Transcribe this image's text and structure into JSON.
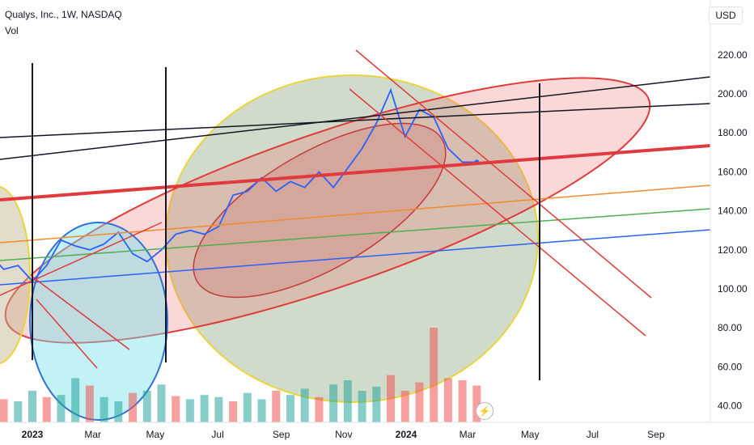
{
  "header": {
    "symbol": "Qualys, Inc., 1W, NASDAQ",
    "volume_label": "Vol",
    "currency": "USD"
  },
  "icons": {
    "flash": "lightning-icon"
  },
  "colors": {
    "price_line": "#2962ff",
    "volume_up": "#26a69a",
    "volume_down": "#ef5350",
    "trend_red": "#e03a3a",
    "ellipse_yellow": "#e8d53c",
    "ellipse_blue": "#2f6fd6",
    "orange_line": "#f28a2f",
    "green_line": "#4caf50",
    "blue_line": "#2962ff"
  },
  "chart_data": {
    "type": "line",
    "title": "Qualys, Inc., 1W, NASDAQ",
    "ylim": [
      35,
      230
    ],
    "yticks": [
      "220.00",
      "200.00",
      "180.00",
      "160.00",
      "140.00",
      "120.00",
      "100.00",
      "80.00",
      "60.00",
      "40.00"
    ],
    "xtick_labels": [
      "2023",
      "Mar",
      "May",
      "Jul",
      "Sep",
      "Nov",
      "2024",
      "Mar",
      "May",
      "Jul",
      "Sep"
    ],
    "xtick_dates": [
      "2023-01-01",
      "2023-03-01",
      "2023-05-01",
      "2023-07-01",
      "2023-09-01",
      "2023-11-01",
      "2024-01-01",
      "2024-03-01",
      "2024-05-01",
      "2024-07-01",
      "2024-09-01"
    ],
    "series": [
      {
        "x": [
          "2022-11-06",
          "2022-11-20",
          "2022-12-04",
          "2022-12-18",
          "2023-01-01",
          "2023-01-15",
          "2023-01-29",
          "2023-02-12",
          "2023-02-26",
          "2023-03-12",
          "2023-03-26",
          "2023-04-09",
          "2023-04-23",
          "2023-05-07",
          "2023-05-21",
          "2023-06-04",
          "2023-06-18",
          "2023-07-02",
          "2023-07-16",
          "2023-07-30",
          "2023-08-13",
          "2023-08-27",
          "2023-09-10",
          "2023-09-24",
          "2023-10-08",
          "2023-10-22",
          "2023-11-05",
          "2023-11-19",
          "2023-12-03",
          "2023-12-17",
          "2023-12-31",
          "2024-01-14",
          "2024-01-28",
          "2024-02-11",
          "2024-02-25",
          "2024-03-10"
        ],
        "values": [
          126,
          118,
          110,
          112,
          104,
          112,
          125,
          122,
          120,
          123,
          129,
          118,
          114,
          120,
          128,
          130,
          128,
          132,
          148,
          150,
          157,
          150,
          155,
          152,
          160,
          152,
          162,
          172,
          185,
          202,
          178,
          192,
          188,
          172,
          165,
          165
        ]
      }
    ],
    "volume": {
      "ylim": [
        0,
        1
      ],
      "values": [
        0.28,
        0.32,
        0.22,
        0.2,
        0.3,
        0.24,
        0.26,
        0.42,
        0.35,
        0.24,
        0.2,
        0.28,
        0.3,
        0.36,
        0.25,
        0.22,
        0.26,
        0.24,
        0.2,
        0.28,
        0.22,
        0.3,
        0.26,
        0.32,
        0.24,
        0.36,
        0.4,
        0.3,
        0.34,
        0.45,
        0.3,
        0.38,
        0.9,
        0.42,
        0.4,
        0.35
      ],
      "up": [
        false,
        true,
        false,
        true,
        true,
        false,
        true,
        true,
        false,
        true,
        true,
        false,
        true,
        true,
        false,
        true,
        true,
        true,
        false,
        true,
        true,
        false,
        true,
        true,
        false,
        true,
        true,
        true,
        true,
        false,
        false,
        false,
        false,
        false,
        false,
        false
      ]
    }
  }
}
